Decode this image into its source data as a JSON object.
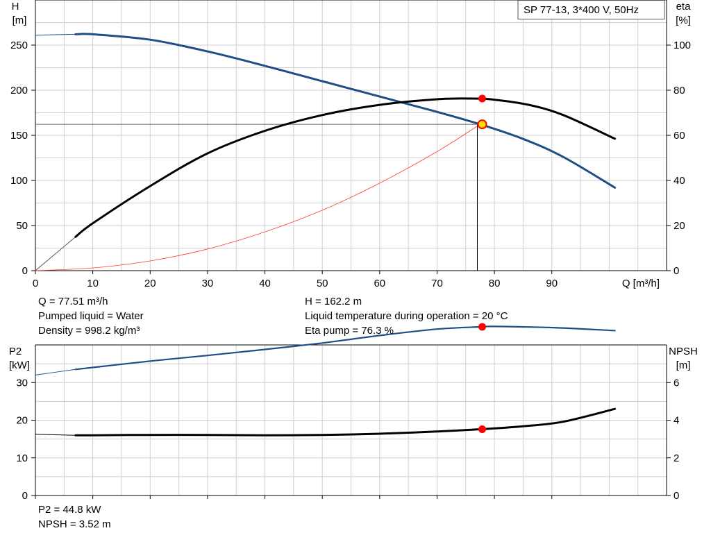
{
  "title": "SP 77-13, 3*400 V, 50Hz",
  "info": {
    "q": "Q = 77.51 m³/h",
    "liquid": "Pumped liquid = Water",
    "density": "Density = 998.2 kg/m³",
    "h": "H = 162.2 m",
    "temp": "Liquid temperature during operation = 20 °C",
    "eta": "Eta pump = 76.3 %",
    "p2": "P2 = 44.8 kW",
    "npsh": "NPSH = 3.52 m"
  },
  "colors": {
    "head": "#1f4e86",
    "eta": "#000000",
    "system": "#ff3b30",
    "p2": "#1f4e86",
    "npsh": "#000000",
    "point": "#ff0000",
    "duty": "#ffe000",
    "grid": "#cfcfcf"
  },
  "chart_data": [
    {
      "type": "line",
      "ylabel_left": [
        "H",
        "[m]"
      ],
      "ylabel_right": [
        "eta",
        "[%]"
      ],
      "xlabel": "Q [m³/h]",
      "xlim": [
        0,
        110
      ],
      "xticks": [
        0,
        10,
        20,
        30,
        40,
        50,
        60,
        70,
        80,
        90
      ],
      "ylim_left": [
        0,
        300
      ],
      "yticks_left": [
        0,
        50,
        100,
        150,
        200,
        250
      ],
      "ylim_right": [
        0,
        120
      ],
      "yticks_right": [
        0,
        20,
        40,
        60,
        80,
        100
      ],
      "grid": true,
      "series": [
        {
          "key": "head",
          "axis": "left",
          "x": [
            7,
            10,
            20,
            30,
            40,
            50,
            60,
            70,
            77.51,
            85,
            92,
            101
          ],
          "y": [
            262,
            262,
            256,
            243,
            227,
            210,
            193,
            176,
            162.2,
            146,
            126,
            92
          ],
          "extrap": [
            [
              0,
              261
            ],
            [
              7,
              262
            ]
          ]
        },
        {
          "key": "eta",
          "axis": "right",
          "x": [
            7,
            10,
            20,
            30,
            40,
            50,
            60,
            70,
            76,
            80,
            86,
            92,
            101
          ],
          "y": [
            15,
            21,
            37.5,
            52,
            62,
            69,
            73.5,
            76,
            76.3,
            75.8,
            73.5,
            69,
            58.5
          ],
          "extrap": [
            [
              0,
              0
            ],
            [
              7,
              15
            ]
          ]
        },
        {
          "key": "system",
          "axis": "left",
          "x": [
            0,
            10,
            20,
            30,
            40,
            50,
            60,
            70,
            77.51
          ],
          "y": [
            0,
            3,
            10.8,
            24,
            43,
            67,
            97,
            132,
            162.2
          ]
        }
      ],
      "duty_point": {
        "x": 77.51,
        "h": 162.2,
        "eta": 76.3
      }
    },
    {
      "type": "line",
      "ylabel_left": [
        "P2",
        "[kW]"
      ],
      "ylabel_right": [
        "NPSH",
        "[m]"
      ],
      "xlim": [
        0,
        110
      ],
      "xticks": [
        0,
        10,
        20,
        30,
        40,
        50,
        60,
        70,
        80,
        90
      ],
      "ylim_left": [
        0,
        40
      ],
      "yticks_left": [
        0,
        10,
        20,
        30
      ],
      "ylim_right": [
        0,
        8
      ],
      "yticks_right": [
        0,
        2,
        4,
        6
      ],
      "grid": true,
      "series": [
        {
          "key": "p2",
          "axis": "left",
          "x": [
            7,
            10,
            20,
            30,
            40,
            50,
            60,
            70,
            77.51,
            80,
            90,
            101
          ],
          "y": [
            33.5,
            34,
            35.7,
            37.2,
            38.8,
            40.5,
            42.5,
            44.2,
            44.8,
            44.9,
            44.6,
            43.8
          ],
          "extrap": [
            [
              0,
              32
            ],
            [
              7,
              33.5
            ]
          ]
        },
        {
          "key": "npsh",
          "axis": "right",
          "x": [
            7,
            10,
            20,
            30,
            40,
            50,
            60,
            70,
            77.51,
            85,
            92,
            101
          ],
          "y": [
            3.2,
            3.2,
            3.22,
            3.22,
            3.2,
            3.22,
            3.28,
            3.4,
            3.52,
            3.68,
            3.92,
            4.6
          ],
          "extrap": [
            [
              0,
              3.25
            ],
            [
              7,
              3.2
            ]
          ]
        }
      ],
      "duty_point": {
        "x": 77.51,
        "p2": 44.8,
        "npsh": 3.52
      }
    }
  ]
}
